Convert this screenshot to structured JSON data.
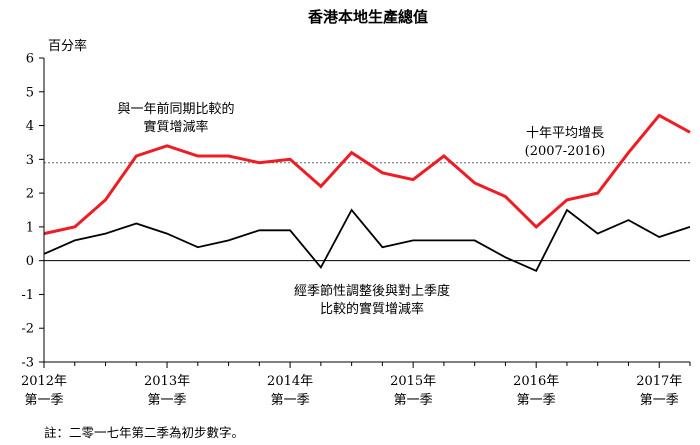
{
  "chart_data": {
    "type": "line",
    "title": "香港本地生產總值",
    "ylabel": "百分率",
    "ylim": [
      -3,
      6
    ],
    "yticks": [
      "-3",
      "-2",
      "-1",
      "0",
      "1",
      "2",
      "3",
      "4",
      "5",
      "6"
    ],
    "x": [
      "2012Q1",
      "2012Q2",
      "2012Q3",
      "2012Q4",
      "2013Q1",
      "2013Q2",
      "2013Q3",
      "2013Q4",
      "2014Q1",
      "2014Q2",
      "2014Q3",
      "2014Q4",
      "2015Q1",
      "2015Q2",
      "2015Q3",
      "2015Q4",
      "2016Q1",
      "2016Q2",
      "2016Q3",
      "2016Q4",
      "2017Q1",
      "2017Q2"
    ],
    "xtick_labels": [
      {
        "year": "2012年",
        "quarter": "第一季"
      },
      {
        "year": "2013年",
        "quarter": "第一季"
      },
      {
        "year": "2014年",
        "quarter": "第一季"
      },
      {
        "year": "2015年",
        "quarter": "第一季"
      },
      {
        "year": "2016年",
        "quarter": "第一季"
      },
      {
        "year": "2017年",
        "quarter": "第一季"
      }
    ],
    "series": [
      {
        "name": "與一年前同期比較的實質增減率",
        "label_lines": [
          "與一年前同期比較的",
          "實質增減率"
        ],
        "color": "#ee1c25",
        "values": [
          0.8,
          1.0,
          1.8,
          3.1,
          3.4,
          3.1,
          3.1,
          2.9,
          3.0,
          2.2,
          3.2,
          2.6,
          2.4,
          3.1,
          2.3,
          1.9,
          1.0,
          1.8,
          2.0,
          3.2,
          4.3,
          3.8
        ]
      },
      {
        "name": "經季節性調整後與對上季度比較的實質增減率",
        "label_lines": [
          "經季節性調整後與對上季度",
          "比較的實質增減率"
        ],
        "color": "#000000",
        "values": [
          0.2,
          0.6,
          0.8,
          1.1,
          0.8,
          0.4,
          0.6,
          0.9,
          0.9,
          -0.2,
          1.5,
          0.4,
          0.6,
          0.6,
          0.6,
          0.1,
          -0.3,
          1.5,
          0.8,
          1.2,
          0.7,
          1.0
        ]
      }
    ],
    "reference_line": {
      "value": 2.9,
      "label_lines": [
        "十年平均增長",
        "(2007-2016)"
      ]
    },
    "note": "註：二零一七年第二季為初步數字。"
  }
}
